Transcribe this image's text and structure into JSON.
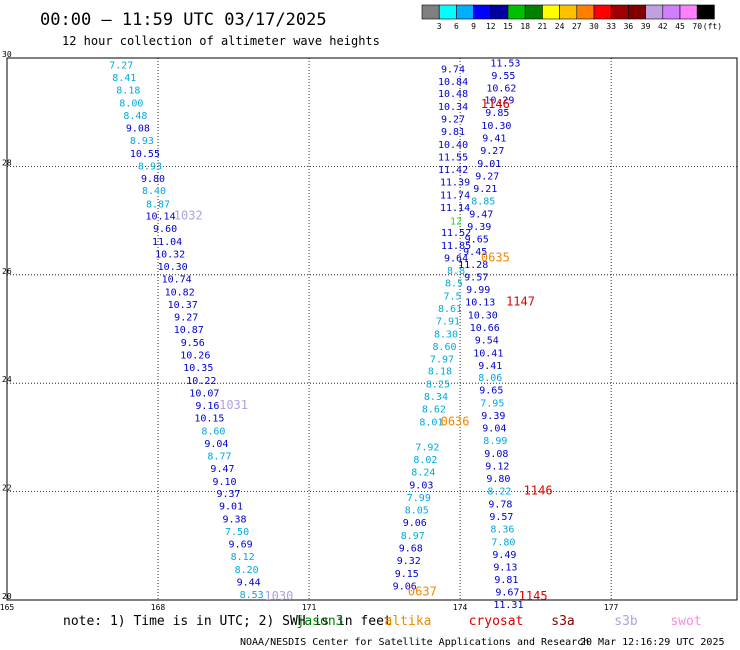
{
  "header": {
    "title": "00:00 – 11:59 UTC 03/17/2025",
    "subtitle": "12 hour collection of altimeter wave heights"
  },
  "colorbar": {
    "colors": [
      "#808080",
      "#00ffff",
      "#00b0ff",
      "#0000ff",
      "#0000a0",
      "#00c000",
      "#008000",
      "#ffff00",
      "#ffc000",
      "#ff8000",
      "#ff0000",
      "#a00000",
      "#800000",
      "#c0a0e0",
      "#d080ff",
      "#ff80ff",
      "#000000"
    ],
    "labels": [
      "3",
      "6",
      "9",
      "12",
      "15",
      "18",
      "21",
      "24",
      "27",
      "30",
      "33",
      "36",
      "39",
      "42",
      "45",
      "70"
    ],
    "unit": "(ft)"
  },
  "chart_data": {
    "type": "scatter",
    "title": "00:00 – 11:59 UTC 03/17/2025",
    "subtitle": "12 hour collection of altimeter wave heights",
    "xlabel": "",
    "ylabel": "",
    "xlim": [
      165,
      179.5
    ],
    "ylim": [
      20,
      30
    ],
    "x_ticks": [
      "165",
      "168",
      "171",
      "174",
      "177"
    ],
    "y_ticks": [
      "20",
      "22",
      "24",
      "26",
      "28",
      "30"
    ],
    "grid": true,
    "series": [
      {
        "values": [
          {
            "x": 167.27,
            "y": 29.88,
            "v": "7.27",
            "c": "#00aadd"
          },
          {
            "x": 167.33,
            "y": 29.65,
            "v": "8.41",
            "c": "#00aadd"
          },
          {
            "x": 167.41,
            "y": 29.42,
            "v": "8.18",
            "c": "#00aadd"
          },
          {
            "x": 167.47,
            "y": 29.18,
            "v": "8.00",
            "c": "#00aadd"
          },
          {
            "x": 167.55,
            "y": 28.95,
            "v": "8.48",
            "c": "#00aadd"
          },
          {
            "x": 167.6,
            "y": 28.72,
            "v": "9.08",
            "c": "#0000cc"
          },
          {
            "x": 167.68,
            "y": 28.49,
            "v": "8.93",
            "c": "#00aadd"
          },
          {
            "x": 167.74,
            "y": 28.25,
            "v": "10.55",
            "c": "#0000cc"
          },
          {
            "x": 167.84,
            "y": 28.02,
            "v": "8.93",
            "c": "#00aadd"
          },
          {
            "x": 167.9,
            "y": 27.79,
            "v": "9.80",
            "c": "#0000cc"
          },
          {
            "x": 167.92,
            "y": 27.56,
            "v": "8.40",
            "c": "#00aadd"
          },
          {
            "x": 168.0,
            "y": 27.32,
            "v": "8.87",
            "c": "#00aadd"
          },
          {
            "x": 168.05,
            "y": 27.09,
            "v": "10.14",
            "c": "#0000cc"
          },
          {
            "x": 168.14,
            "y": 26.86,
            "v": "9.60",
            "c": "#0000cc"
          },
          {
            "x": 168.18,
            "y": 26.62,
            "v": "11.04",
            "c": "#0000cc"
          },
          {
            "x": 168.24,
            "y": 26.39,
            "v": "10.32",
            "c": "#0000cc"
          },
          {
            "x": 168.29,
            "y": 26.16,
            "v": "10.30",
            "c": "#0000cc"
          },
          {
            "x": 168.37,
            "y": 25.93,
            "v": "10.74",
            "c": "#0000cc"
          },
          {
            "x": 168.43,
            "y": 25.69,
            "v": "10.82",
            "c": "#0000cc"
          },
          {
            "x": 168.49,
            "y": 25.46,
            "v": "10.37",
            "c": "#0000cc"
          },
          {
            "x": 168.56,
            "y": 25.23,
            "v": "9.27",
            "c": "#0000cc"
          },
          {
            "x": 168.61,
            "y": 25.0,
            "v": "10.87",
            "c": "#0000cc"
          },
          {
            "x": 168.69,
            "y": 24.76,
            "v": "9.56",
            "c": "#0000cc"
          },
          {
            "x": 168.74,
            "y": 24.53,
            "v": "10.26",
            "c": "#0000cc"
          },
          {
            "x": 168.8,
            "y": 24.3,
            "v": "10.35",
            "c": "#0000cc"
          },
          {
            "x": 168.86,
            "y": 24.06,
            "v": "10.22",
            "c": "#0000cc"
          },
          {
            "x": 168.92,
            "y": 23.83,
            "v": "10.07",
            "c": "#0000cc"
          },
          {
            "x": 168.98,
            "y": 23.6,
            "v": "9.16",
            "c": "#0000cc"
          },
          {
            "x": 169.02,
            "y": 23.37,
            "v": "10.15",
            "c": "#0000cc"
          },
          {
            "x": 169.1,
            "y": 23.13,
            "v": "8.60",
            "c": "#00aadd"
          },
          {
            "x": 169.16,
            "y": 22.9,
            "v": "9.04",
            "c": "#0000cc"
          },
          {
            "x": 169.22,
            "y": 22.67,
            "v": "8.77",
            "c": "#00aadd"
          },
          {
            "x": 169.28,
            "y": 22.44,
            "v": "9.47",
            "c": "#0000cc"
          },
          {
            "x": 169.32,
            "y": 22.2,
            "v": "9.10",
            "c": "#0000cc"
          },
          {
            "x": 169.4,
            "y": 21.97,
            "v": "9.37",
            "c": "#0000cc"
          },
          {
            "x": 169.45,
            "y": 21.74,
            "v": "9.01",
            "c": "#0000cc"
          },
          {
            "x": 169.52,
            "y": 21.5,
            "v": "9.38",
            "c": "#0000cc"
          },
          {
            "x": 169.57,
            "y": 21.27,
            "v": "7.50",
            "c": "#00aadd"
          },
          {
            "x": 169.64,
            "y": 21.04,
            "v": "9.69",
            "c": "#0000cc"
          },
          {
            "x": 169.68,
            "y": 20.81,
            "v": "8.12",
            "c": "#00aadd"
          },
          {
            "x": 169.76,
            "y": 20.57,
            "v": "8.20",
            "c": "#00aadd"
          },
          {
            "x": 169.8,
            "y": 20.34,
            "v": "9.44",
            "c": "#0000cc"
          },
          {
            "x": 169.86,
            "y": 20.11,
            "v": "8.53",
            "c": "#00aadd"
          },
          {
            "x": 173.86,
            "y": 29.81,
            "v": "9.74",
            "c": "#0000cc"
          },
          {
            "x": 173.86,
            "y": 29.58,
            "v": "10.84",
            "c": "#0000cc"
          },
          {
            "x": 173.86,
            "y": 29.35,
            "v": "10.48",
            "c": "#0000cc"
          },
          {
            "x": 173.86,
            "y": 29.11,
            "v": "10.34",
            "c": "#0000cc"
          },
          {
            "x": 173.86,
            "y": 28.88,
            "v": "9.27",
            "c": "#0000cc"
          },
          {
            "x": 173.86,
            "y": 28.65,
            "v": "9.81",
            "c": "#0000cc"
          },
          {
            "x": 173.86,
            "y": 28.41,
            "v": "10.40",
            "c": "#0000cc"
          },
          {
            "x": 173.86,
            "y": 28.18,
            "v": "11.55",
            "c": "#0000cc"
          },
          {
            "x": 173.86,
            "y": 27.95,
            "v": "11.42",
            "c": "#0000cc"
          },
          {
            "x": 173.9,
            "y": 27.72,
            "v": "11.39",
            "c": "#0000cc"
          },
          {
            "x": 173.9,
            "y": 27.48,
            "v": "11.74",
            "c": "#0000cc"
          },
          {
            "x": 173.9,
            "y": 27.25,
            "v": "11.14",
            "c": "#0000cc"
          },
          {
            "x": 173.92,
            "y": 27.0,
            "v": "12",
            "c": "#33cc33"
          },
          {
            "x": 173.92,
            "y": 26.79,
            "v": "11.52",
            "c": "#0000cc"
          },
          {
            "x": 173.92,
            "y": 26.55,
            "v": "11.85",
            "c": "#0000cc"
          },
          {
            "x": 173.92,
            "y": 26.32,
            "v": "9.64",
            "c": "#0000cc"
          },
          {
            "x": 173.92,
            "y": 26.09,
            "v": "8.8",
            "c": "#00aadd"
          },
          {
            "x": 173.88,
            "y": 25.86,
            "v": "8.5",
            "c": "#00aadd"
          },
          {
            "x": 173.85,
            "y": 25.62,
            "v": "7.5",
            "c": "#00aadd"
          },
          {
            "x": 173.8,
            "y": 25.39,
            "v": "8.61",
            "c": "#00aadd"
          },
          {
            "x": 173.76,
            "y": 25.16,
            "v": "7.91",
            "c": "#00aadd"
          },
          {
            "x": 173.72,
            "y": 24.92,
            "v": "8.30",
            "c": "#00aadd"
          },
          {
            "x": 173.69,
            "y": 24.69,
            "v": "8.60",
            "c": "#00aadd"
          },
          {
            "x": 173.64,
            "y": 24.46,
            "v": "7.97",
            "c": "#00aadd"
          },
          {
            "x": 173.6,
            "y": 24.23,
            "v": "8.18",
            "c": "#00aadd"
          },
          {
            "x": 173.56,
            "y": 23.99,
            "v": "8.25",
            "c": "#00aadd"
          },
          {
            "x": 173.52,
            "y": 23.76,
            "v": "8.34",
            "c": "#00aadd"
          },
          {
            "x": 173.48,
            "y": 23.53,
            "v": "8.62",
            "c": "#00aadd"
          },
          {
            "x": 173.43,
            "y": 23.29,
            "v": "8.01",
            "c": "#00aadd"
          },
          {
            "x": 173.35,
            "y": 22.83,
            "v": "7.92",
            "c": "#00aadd"
          },
          {
            "x": 173.31,
            "y": 22.6,
            "v": "8.02",
            "c": "#00aadd"
          },
          {
            "x": 173.27,
            "y": 22.37,
            "v": "8.24",
            "c": "#00aadd"
          },
          {
            "x": 173.23,
            "y": 22.13,
            "v": "9.03",
            "c": "#0000cc"
          },
          {
            "x": 173.18,
            "y": 21.9,
            "v": "7.99",
            "c": "#00aadd"
          },
          {
            "x": 173.14,
            "y": 21.67,
            "v": "8.05",
            "c": "#00aadd"
          },
          {
            "x": 173.1,
            "y": 21.44,
            "v": "9.06",
            "c": "#0000cc"
          },
          {
            "x": 173.06,
            "y": 21.2,
            "v": "8.97",
            "c": "#00aadd"
          },
          {
            "x": 173.02,
            "y": 20.97,
            "v": "9.68",
            "c": "#0000cc"
          },
          {
            "x": 172.98,
            "y": 20.74,
            "v": "9.32",
            "c": "#0000cc"
          },
          {
            "x": 172.94,
            "y": 20.5,
            "v": "9.15",
            "c": "#0000cc"
          },
          {
            "x": 172.9,
            "y": 20.27,
            "v": "9.06",
            "c": "#0000cc"
          },
          {
            "x": 174.9,
            "y": 29.92,
            "v": "11.53",
            "c": "#0000cc"
          },
          {
            "x": 174.86,
            "y": 29.69,
            "v": "9.55",
            "c": "#0000cc"
          },
          {
            "x": 174.82,
            "y": 29.46,
            "v": "10.62",
            "c": "#0000cc"
          },
          {
            "x": 174.78,
            "y": 29.23,
            "v": "10.29",
            "c": "#0000cc"
          },
          {
            "x": 174.74,
            "y": 29.0,
            "v": "9.85",
            "c": "#0000cc"
          },
          {
            "x": 174.72,
            "y": 28.76,
            "v": "10.30",
            "c": "#0000cc"
          },
          {
            "x": 174.68,
            "y": 28.53,
            "v": "9.41",
            "c": "#0000cc"
          },
          {
            "x": 174.64,
            "y": 28.3,
            "v": "9.27",
            "c": "#0000cc"
          },
          {
            "x": 174.58,
            "y": 28.06,
            "v": "9.01",
            "c": "#0000cc"
          },
          {
            "x": 174.54,
            "y": 27.83,
            "v": "9.27",
            "c": "#0000cc"
          },
          {
            "x": 174.5,
            "y": 27.6,
            "v": "9.21",
            "c": "#0000cc"
          },
          {
            "x": 174.46,
            "y": 27.37,
            "v": "8.85",
            "c": "#00aadd"
          },
          {
            "x": 174.42,
            "y": 27.13,
            "v": "9.47",
            "c": "#0000cc"
          },
          {
            "x": 174.38,
            "y": 26.9,
            "v": "9.39",
            "c": "#0000cc"
          },
          {
            "x": 174.33,
            "y": 26.67,
            "v": "9.65",
            "c": "#0000cc"
          },
          {
            "x": 174.3,
            "y": 26.44,
            "v": "9.45",
            "c": "#0000cc"
          },
          {
            "x": 174.26,
            "y": 26.2,
            "v": "11.28",
            "c": "#0000cc"
          },
          {
            "x": 174.32,
            "y": 25.97,
            "v": "9.57",
            "c": "#0000cc"
          },
          {
            "x": 174.36,
            "y": 25.74,
            "v": "9.99",
            "c": "#0000cc"
          },
          {
            "x": 174.4,
            "y": 25.51,
            "v": "10.13",
            "c": "#0000cc"
          },
          {
            "x": 174.45,
            "y": 25.27,
            "v": "10.30",
            "c": "#0000cc"
          },
          {
            "x": 174.49,
            "y": 25.04,
            "v": "10.66",
            "c": "#0000cc"
          },
          {
            "x": 174.53,
            "y": 24.81,
            "v": "9.54",
            "c": "#0000cc"
          },
          {
            "x": 174.56,
            "y": 24.57,
            "v": "10.41",
            "c": "#0000cc"
          },
          {
            "x": 174.6,
            "y": 24.34,
            "v": "9.41",
            "c": "#0000cc"
          },
          {
            "x": 174.6,
            "y": 24.11,
            "v": "8.06",
            "c": "#00aadd"
          },
          {
            "x": 174.62,
            "y": 23.88,
            "v": "9.65",
            "c": "#0000cc"
          },
          {
            "x": 174.64,
            "y": 23.64,
            "v": "7.95",
            "c": "#00aadd"
          },
          {
            "x": 174.66,
            "y": 23.41,
            "v": "9.39",
            "c": "#0000cc"
          },
          {
            "x": 174.68,
            "y": 23.18,
            "v": "9.04",
            "c": "#0000cc"
          },
          {
            "x": 174.7,
            "y": 22.95,
            "v": "8.99",
            "c": "#00aadd"
          },
          {
            "x": 174.72,
            "y": 22.71,
            "v": "9.08",
            "c": "#0000cc"
          },
          {
            "x": 174.74,
            "y": 22.48,
            "v": "9.12",
            "c": "#0000cc"
          },
          {
            "x": 174.76,
            "y": 22.25,
            "v": "9.80",
            "c": "#0000cc"
          },
          {
            "x": 174.78,
            "y": 22.02,
            "v": "8.22",
            "c": "#00aadd"
          },
          {
            "x": 174.8,
            "y": 21.78,
            "v": "9.78",
            "c": "#0000cc"
          },
          {
            "x": 174.82,
            "y": 21.55,
            "v": "9.57",
            "c": "#0000cc"
          },
          {
            "x": 174.84,
            "y": 21.32,
            "v": "8.36",
            "c": "#00aadd"
          },
          {
            "x": 174.86,
            "y": 21.08,
            "v": "7.80",
            "c": "#00aadd"
          },
          {
            "x": 174.88,
            "y": 20.85,
            "v": "9.49",
            "c": "#0000cc"
          },
          {
            "x": 174.9,
            "y": 20.62,
            "v": "9.13",
            "c": "#0000cc"
          },
          {
            "x": 174.92,
            "y": 20.39,
            "v": "9.81",
            "c": "#0000cc"
          },
          {
            "x": 174.94,
            "y": 20.16,
            "v": "9.67",
            "c": "#0000cc"
          },
          {
            "x": 174.96,
            "y": 19.93,
            "v": "11.31",
            "c": "#0000cc"
          }
        ]
      }
    ],
    "pass_times": [
      {
        "x": 168.6,
        "y": 27.09,
        "v": "1032",
        "c": "#b0a0e0"
      },
      {
        "x": 169.5,
        "y": 23.6,
        "v": "1031",
        "c": "#b0a0e0"
      },
      {
        "x": 170.4,
        "y": 20.07,
        "v": "1030",
        "c": "#b0a0e0"
      },
      {
        "x": 174.7,
        "y": 29.15,
        "v": "1146",
        "c": "#dd0000"
      },
      {
        "x": 174.7,
        "y": 26.32,
        "v": "0635",
        "c": "#ee8800"
      },
      {
        "x": 175.2,
        "y": 25.51,
        "v": "1147",
        "c": "#dd0000"
      },
      {
        "x": 173.9,
        "y": 23.29,
        "v": "0636",
        "c": "#ee8800"
      },
      {
        "x": 175.55,
        "y": 22.02,
        "v": "1146",
        "c": "#dd0000"
      },
      {
        "x": 173.25,
        "y": 20.16,
        "v": "0637",
        "c": "#ee8800"
      },
      {
        "x": 175.45,
        "y": 20.07,
        "v": "1145",
        "c": "#dd0000"
      }
    ]
  },
  "footer": {
    "note": "note: 1) Time is in UTC; 2) SWH is in feet",
    "satellites": [
      {
        "name": "jason3",
        "color": "#008000"
      },
      {
        "name": "altika",
        "color": "#ee8800"
      },
      {
        "name": "cryosat",
        "color": "#dd0000"
      },
      {
        "name": "s3a",
        "color": "#880000"
      },
      {
        "name": "s3b",
        "color": "#b0a0e0"
      },
      {
        "name": "swot",
        "color": "#ff88dd"
      }
    ],
    "credit": "NOAA/NESDIS Center for Satellite Applications and Research",
    "timestamp": "20 Mar 12:16:29 UTC 2025"
  }
}
